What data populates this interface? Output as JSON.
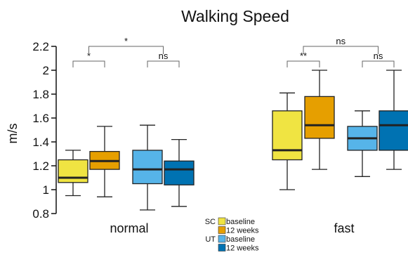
{
  "chart_data": {
    "type": "boxplot",
    "title": "Walking Speed",
    "ylabel": "m/s",
    "ylim": [
      0.8,
      2.2
    ],
    "yticks": [
      "0.8",
      "1",
      "1.2",
      "1.4",
      "1.6",
      "1.8",
      "2",
      "2.2"
    ],
    "categories": [
      "normal",
      "fast"
    ],
    "series": [
      {
        "name": "baseline",
        "group": "SC",
        "color": "#f0e442",
        "values": [
          {
            "min": 0.95,
            "q1": 1.06,
            "median": 1.1,
            "q3": 1.25,
            "max": 1.33
          },
          {
            "min": 1.0,
            "q1": 1.25,
            "median": 1.33,
            "q3": 1.66,
            "max": 1.81
          }
        ]
      },
      {
        "name": "12 weeks",
        "group": "SC",
        "color": "#e69f00",
        "values": [
          {
            "min": 0.94,
            "q1": 1.17,
            "median": 1.24,
            "q3": 1.32,
            "max": 1.53
          },
          {
            "min": 1.17,
            "q1": 1.43,
            "median": 1.54,
            "q3": 1.78,
            "max": 2.0
          }
        ]
      },
      {
        "name": "baseline",
        "group": "UT",
        "color": "#56b4e9",
        "values": [
          {
            "min": 0.83,
            "q1": 1.05,
            "median": 1.17,
            "q3": 1.33,
            "max": 1.54
          },
          {
            "min": 1.11,
            "q1": 1.33,
            "median": 1.43,
            "q3": 1.53,
            "max": 1.66
          }
        ]
      },
      {
        "name": "12 weeks",
        "group": "UT",
        "color": "#0072b2",
        "values": [
          {
            "min": 0.86,
            "q1": 1.04,
            "median": 1.17,
            "q3": 1.24,
            "max": 1.42
          },
          {
            "min": 1.17,
            "q1": 1.33,
            "median": 1.54,
            "q3": 1.66,
            "max": 2.0
          }
        ]
      }
    ],
    "annotations": [
      {
        "category": "normal",
        "from": 0,
        "to": 1,
        "label": "*"
      },
      {
        "category": "normal",
        "from": 2,
        "to": 3,
        "label": "ns"
      },
      {
        "category": "normal",
        "from": "SC",
        "to": "UT",
        "label": "*"
      },
      {
        "category": "fast",
        "from": 0,
        "to": 1,
        "label": "**"
      },
      {
        "category": "fast",
        "from": 2,
        "to": 3,
        "label": "ns"
      },
      {
        "category": "fast",
        "from": "SC",
        "to": "UT",
        "label": "ns"
      }
    ],
    "legend": {
      "position": "bottom-center",
      "groups": [
        {
          "label": "SC",
          "entries": [
            "baseline",
            "12 weeks"
          ]
        },
        {
          "label": "UT",
          "entries": [
            "baseline",
            "12 weeks"
          ]
        }
      ]
    },
    "grid": false
  }
}
